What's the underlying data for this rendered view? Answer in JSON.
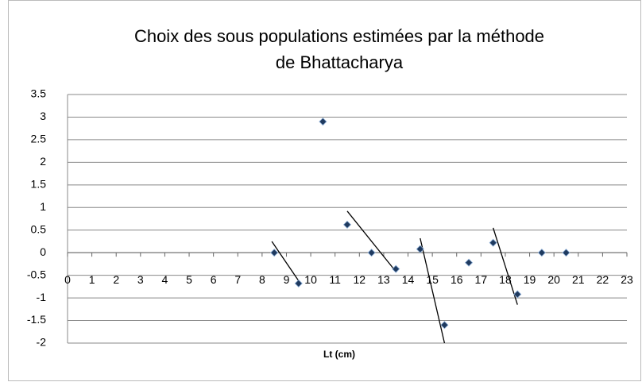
{
  "chart_data": {
    "type": "scatter",
    "title": [
      "Choix des sous populations estimées par la méthode",
      "de Bhattacharya"
    ],
    "x_label": "Lt (cm)",
    "x": [
      8.5,
      9.5,
      10.5,
      11.5,
      12.5,
      13.5,
      14.5,
      15.5,
      16.5,
      17.5,
      18.5,
      19.5,
      20.5
    ],
    "y": [
      0,
      -0.68,
      2.9,
      0.62,
      0,
      -0.36,
      0.08,
      -1.6,
      -0.22,
      0.22,
      -0.92,
      0,
      0
    ],
    "color": "#1f3a5f",
    "lines": [
      {
        "x": [
          8.4,
          9.6
        ],
        "y": [
          0.25,
          -0.7
        ]
      },
      {
        "x": [
          11.5,
          13.4
        ],
        "y": [
          0.92,
          -0.35
        ]
      },
      {
        "x": [
          14.5,
          15.5
        ],
        "y": [
          0.32,
          -2
        ]
      },
      {
        "x": [
          17.5,
          18.5
        ],
        "y": [
          0.55,
          -1.15
        ]
      }
    ],
    "xlim": [
      0,
      23
    ],
    "xticks": [
      0,
      1,
      2,
      3,
      4,
      5,
      6,
      7,
      8,
      9,
      10,
      11,
      12,
      13,
      14,
      15,
      16,
      17,
      18,
      19,
      20,
      21,
      22,
      23
    ],
    "ylim": [
      -2,
      3.5
    ],
    "yticks": [
      -2,
      -1.5,
      -1,
      -0.5,
      0,
      0.5,
      1,
      1.5,
      2,
      2.5,
      3,
      3.5
    ],
    "grid": true
  }
}
